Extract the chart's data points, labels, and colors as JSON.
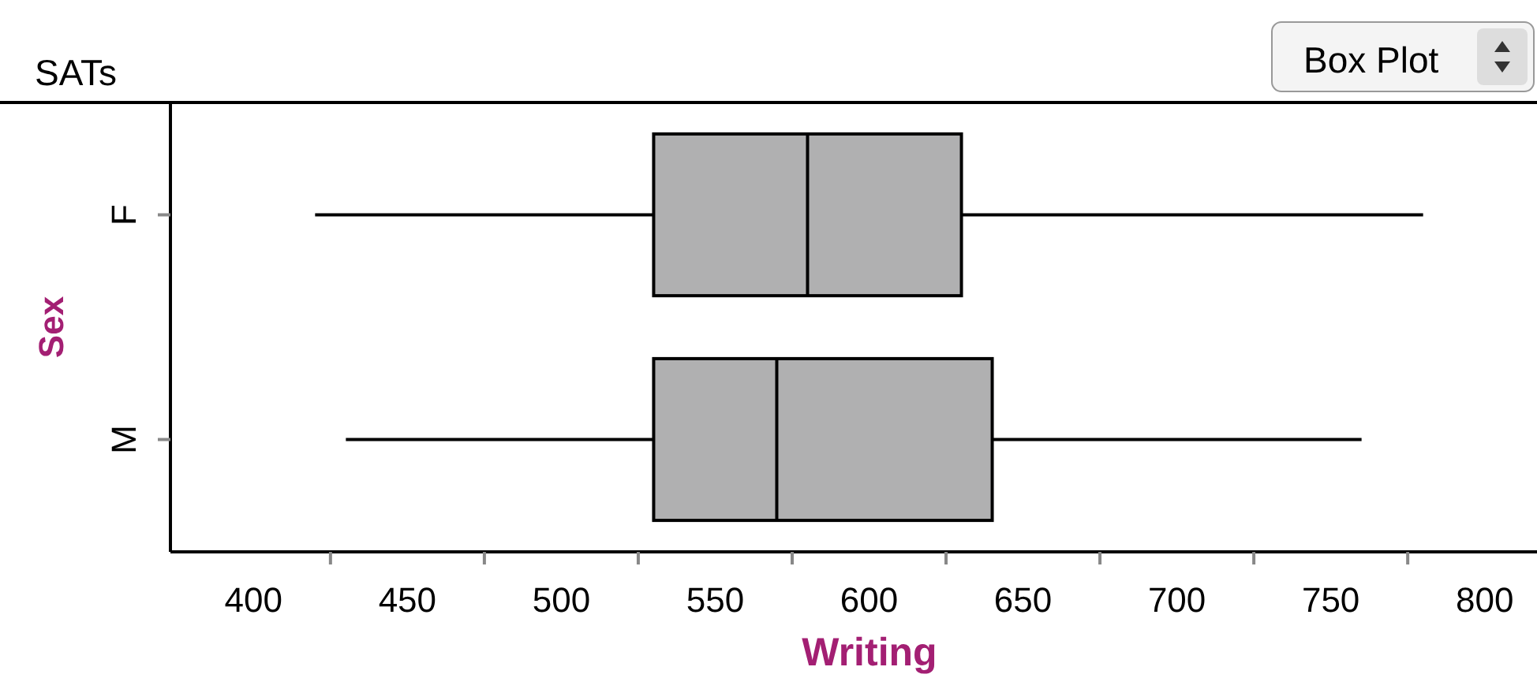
{
  "chart_data": {
    "type": "box",
    "title": "SATs",
    "xlabel": "Writing",
    "ylabel": "Sex",
    "orientation": "horizontal",
    "categories": [
      "F",
      "M"
    ],
    "boxes": [
      {
        "low": 420,
        "q1": 530,
        "median": 580,
        "q3": 630,
        "high": 780
      },
      {
        "low": 430,
        "q1": 530,
        "median": 570,
        "q3": 640,
        "high": 760
      }
    ],
    "color": "#b0b0b1",
    "xlim": [
      373,
      817
    ],
    "xticks": [
      400,
      {
        "value": 425,
        "label": null
      },
      450,
      {
        "value": 475,
        "label": null
      },
      500,
      {
        "value": 525,
        "label": null
      },
      550,
      {
        "value": 575,
        "label": null
      },
      600,
      {
        "value": 625,
        "label": null
      },
      650,
      {
        "value": 675,
        "label": null
      },
      700,
      {
        "value": 725,
        "label": null
      },
      750,
      {
        "value": 775,
        "label": null
      },
      800
    ],
    "grid": false,
    "annotations": [
      "Box Plot"
    ]
  }
}
